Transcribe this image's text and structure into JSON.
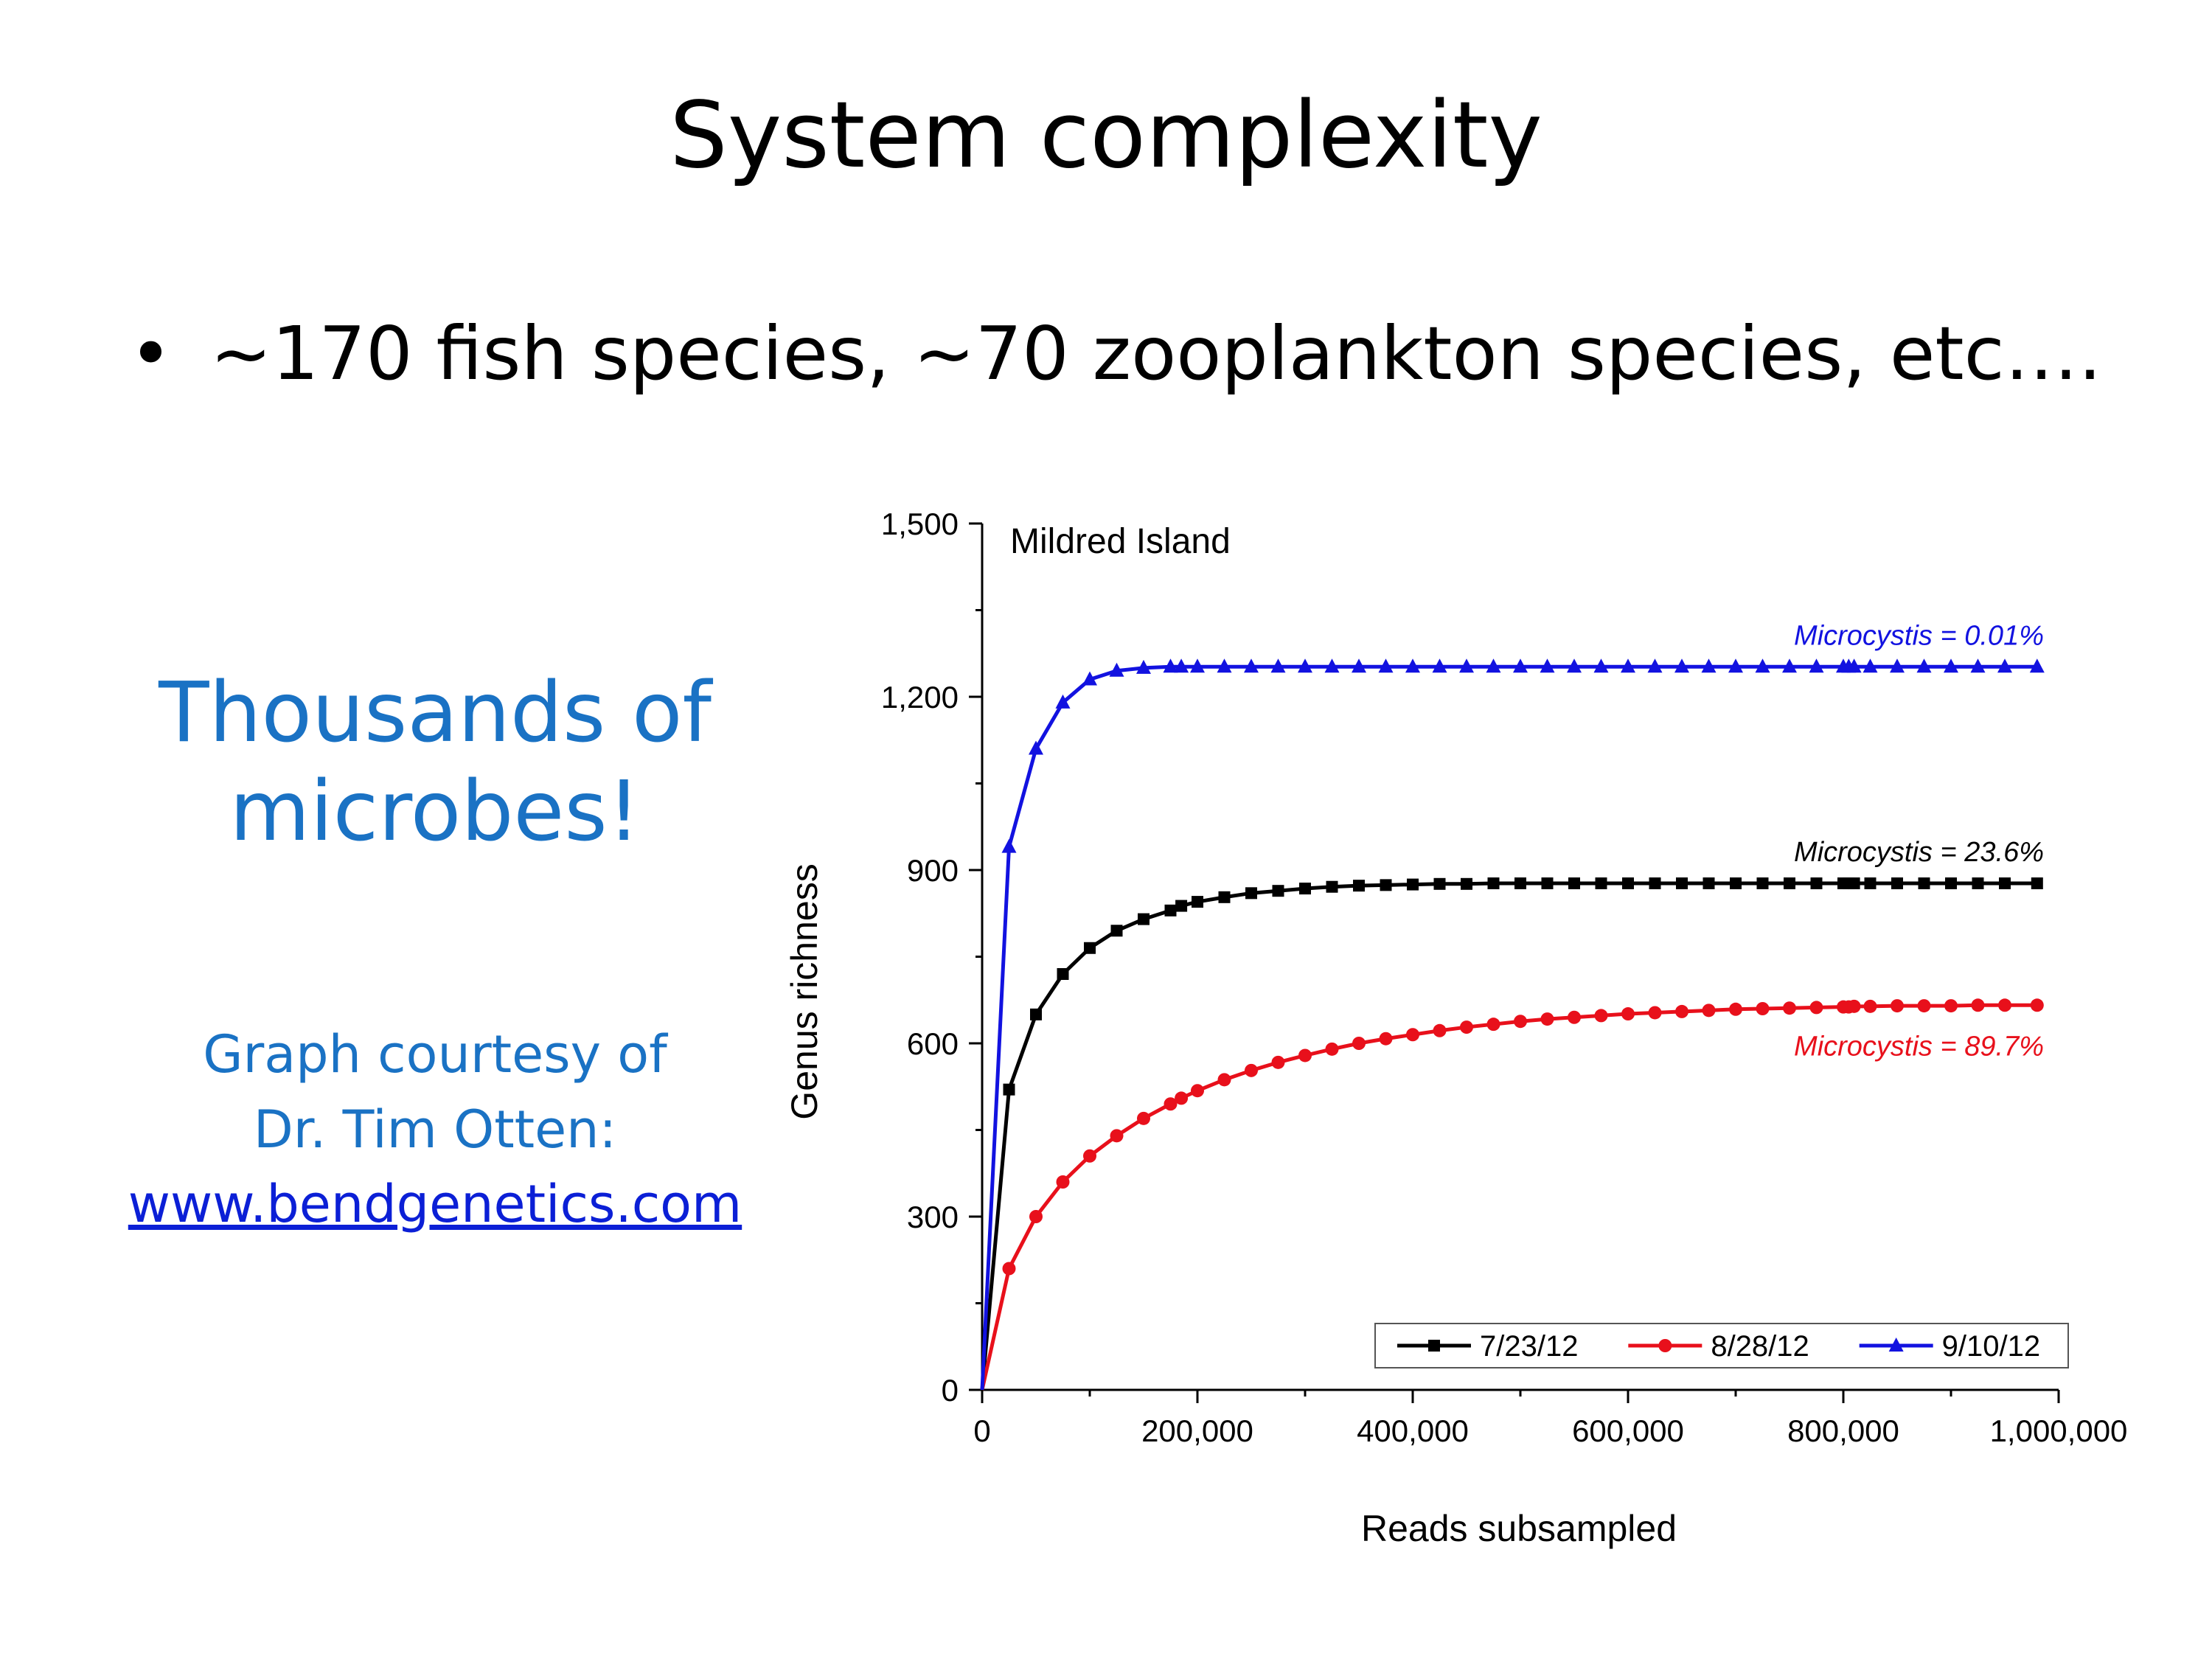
{
  "slide": {
    "title": "System complexity",
    "bullet_char": "•",
    "bullet_text": "~170 fish species, ~70 zooplankton species, etc….",
    "callout_line1": "Thousands of",
    "callout_line2": "microbes!",
    "credit_line1": "Graph courtesy of",
    "credit_line2": "Dr. Tim Otten:",
    "credit_link": "www.bendgenetics.com"
  },
  "colors": {
    "callout": "#1a72c4",
    "link": "#0b1fd6"
  },
  "chart_data": {
    "type": "line",
    "title": "Mildred Island",
    "xlabel": "Reads subsampled",
    "ylabel": "Genus richness",
    "xlim": [
      0,
      1000000
    ],
    "ylim": [
      0,
      1500
    ],
    "xticks": [
      0,
      200000,
      400000,
      600000,
      800000,
      1000000
    ],
    "xtick_labels": [
      "0",
      "200,000",
      "400,000",
      "600,000",
      "800,000",
      "1,000,000"
    ],
    "yticks": [
      0,
      300,
      600,
      900,
      1200,
      1500
    ],
    "ytick_labels": [
      "0",
      "300",
      "600",
      "900",
      "1,200",
      "1,500"
    ],
    "grid": false,
    "legend_position": "bottom-right",
    "series": [
      {
        "name": "7/23/12",
        "color": "#000000",
        "marker": "square",
        "annotation": "Microcystis = 23.6%",
        "x": [
          0,
          25000,
          50000,
          75000,
          100000,
          125000,
          150000,
          175000,
          185000,
          200000,
          225000,
          250000,
          275000,
          300000,
          325000,
          350000,
          375000,
          400000,
          425000,
          450000,
          475000,
          500000,
          525000,
          550000,
          575000,
          600000,
          625000,
          650000,
          675000,
          700000,
          725000,
          750000,
          775000,
          800000,
          805000,
          810000,
          825000,
          850000,
          875000,
          900000,
          925000,
          950000,
          980000
        ],
        "y": [
          0,
          520,
          650,
          720,
          765,
          795,
          815,
          830,
          838,
          845,
          853,
          860,
          864,
          868,
          871,
          873,
          874,
          875,
          876,
          876,
          877,
          877,
          877,
          877,
          877,
          877,
          877,
          877,
          877,
          877,
          877,
          877,
          877,
          877,
          877,
          877,
          877,
          877,
          877,
          877,
          877,
          877,
          877
        ]
      },
      {
        "name": "8/28/12",
        "color": "#e8101b",
        "marker": "circle",
        "annotation": "Microcystis = 89.7%",
        "x": [
          0,
          25000,
          50000,
          75000,
          100000,
          125000,
          150000,
          175000,
          185000,
          200000,
          225000,
          250000,
          275000,
          300000,
          325000,
          350000,
          375000,
          400000,
          425000,
          450000,
          475000,
          500000,
          525000,
          550000,
          575000,
          600000,
          625000,
          650000,
          675000,
          700000,
          725000,
          750000,
          775000,
          800000,
          805000,
          810000,
          825000,
          850000,
          875000,
          900000,
          925000,
          950000,
          980000
        ],
        "y": [
          0,
          210,
          300,
          360,
          405,
          440,
          470,
          495,
          505,
          518,
          537,
          553,
          567,
          579,
          590,
          600,
          608,
          615,
          622,
          628,
          633,
          638,
          642,
          645,
          648,
          651,
          653,
          655,
          657,
          659,
          660,
          661,
          662,
          663,
          663,
          664,
          664,
          665,
          665,
          665,
          666,
          666,
          666
        ]
      },
      {
        "name": "9/10/12",
        "color": "#1212e0",
        "marker": "triangle",
        "annotation": "Microcystis = 0.01%",
        "x": [
          0,
          25000,
          50000,
          75000,
          100000,
          125000,
          150000,
          175000,
          185000,
          200000,
          225000,
          250000,
          275000,
          300000,
          325000,
          350000,
          375000,
          400000,
          425000,
          450000,
          475000,
          500000,
          525000,
          550000,
          575000,
          600000,
          625000,
          650000,
          675000,
          700000,
          725000,
          750000,
          775000,
          800000,
          805000,
          810000,
          825000,
          850000,
          875000,
          900000,
          925000,
          950000,
          980000
        ],
        "y": [
          0,
          940,
          1110,
          1190,
          1230,
          1245,
          1250,
          1252,
          1252,
          1252,
          1252,
          1252,
          1252,
          1252,
          1252,
          1252,
          1252,
          1252,
          1252,
          1252,
          1252,
          1252,
          1252,
          1252,
          1252,
          1252,
          1252,
          1252,
          1252,
          1252,
          1252,
          1252,
          1252,
          1252,
          1252,
          1252,
          1252,
          1252,
          1252,
          1252,
          1252,
          1252,
          1252
        ]
      }
    ]
  }
}
